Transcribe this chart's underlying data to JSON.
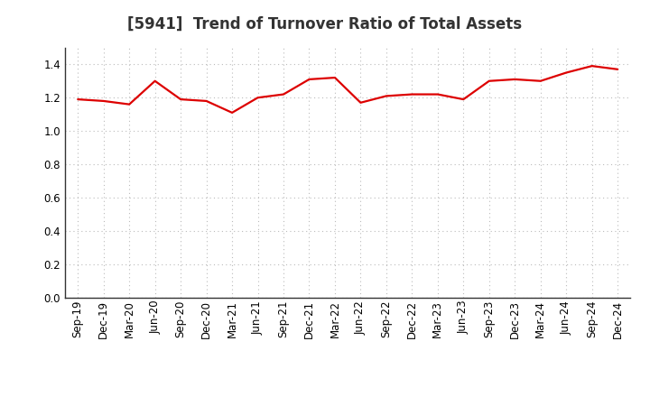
{
  "title": "[5941]  Trend of Turnover Ratio of Total Assets",
  "labels": [
    "Sep-19",
    "Dec-19",
    "Mar-20",
    "Jun-20",
    "Sep-20",
    "Dec-20",
    "Mar-21",
    "Jun-21",
    "Sep-21",
    "Dec-21",
    "Mar-22",
    "Jun-22",
    "Sep-22",
    "Dec-22",
    "Mar-23",
    "Jun-23",
    "Sep-23",
    "Dec-23",
    "Mar-24",
    "Jun-24",
    "Sep-24",
    "Dec-24"
  ],
  "values": [
    1.19,
    1.18,
    1.16,
    1.3,
    1.19,
    1.18,
    1.11,
    1.2,
    1.22,
    1.31,
    1.32,
    1.17,
    1.21,
    1.22,
    1.22,
    1.19,
    1.3,
    1.31,
    1.3,
    1.35,
    1.39,
    1.37
  ],
  "line_color": "#dd0000",
  "line_width": 1.6,
  "ylim": [
    0.0,
    1.5
  ],
  "yticks": [
    0.0,
    0.2,
    0.4,
    0.6,
    0.8,
    1.0,
    1.2,
    1.4
  ],
  "grid_color": "#bbbbbb",
  "background_color": "#ffffff",
  "title_color": "#333333",
  "title_fontsize": 12,
  "tick_fontsize": 8.5
}
